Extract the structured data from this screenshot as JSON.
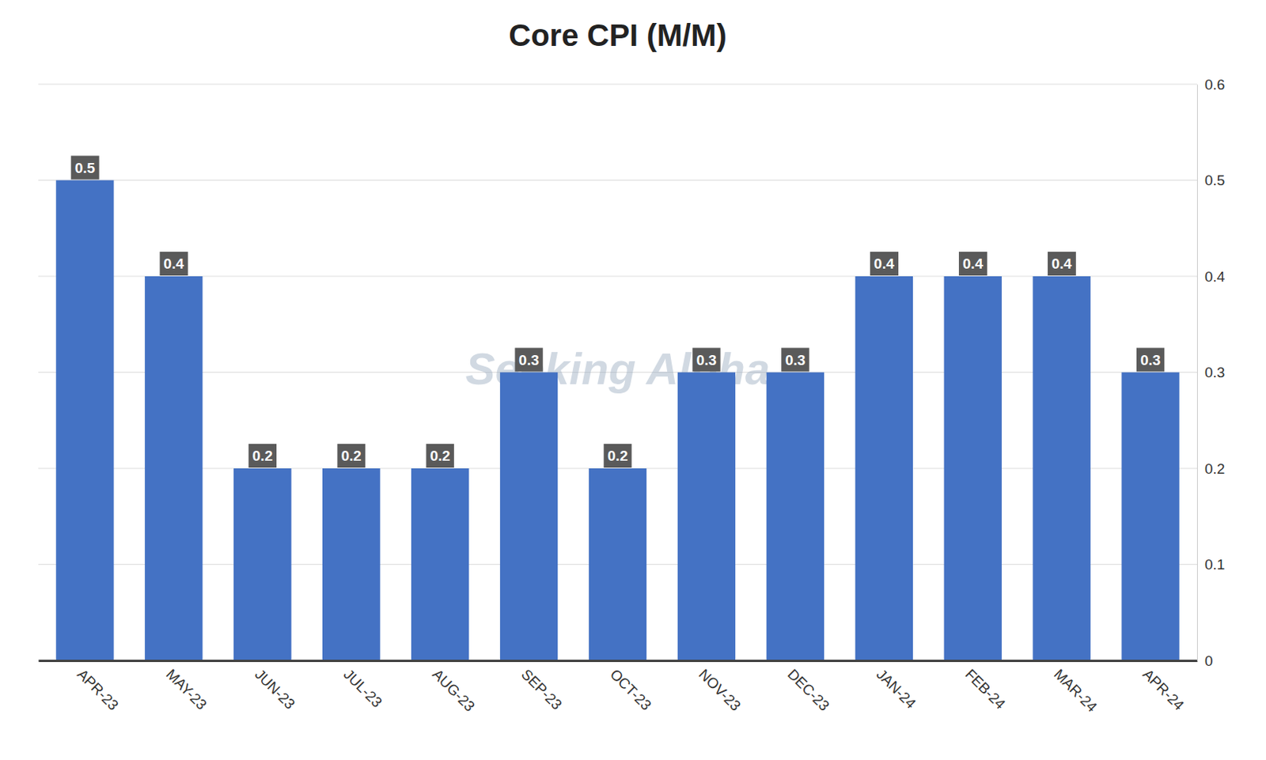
{
  "chart_data": {
    "type": "bar",
    "title": "Core CPI (M/M)",
    "categories": [
      "APR-23",
      "MAY-23",
      "JUN-23",
      "JUL-23",
      "AUG-23",
      "SEP-23",
      "OCT-23",
      "NOV-23",
      "DEC-23",
      "JAN-24",
      "FEB-24",
      "MAR-24",
      "APR-24"
    ],
    "values": [
      0.5,
      0.4,
      0.2,
      0.2,
      0.2,
      0.3,
      0.2,
      0.3,
      0.3,
      0.4,
      0.4,
      0.4,
      0.3
    ],
    "color": "#4472C4",
    "ylim": [
      0,
      0.6
    ],
    "yticks": [
      0,
      0.1,
      0.2,
      0.3,
      0.4,
      0.5,
      0.6
    ],
    "grid": true,
    "data_labels": true,
    "annotations": [
      "Seeking Alpha"
    ]
  }
}
